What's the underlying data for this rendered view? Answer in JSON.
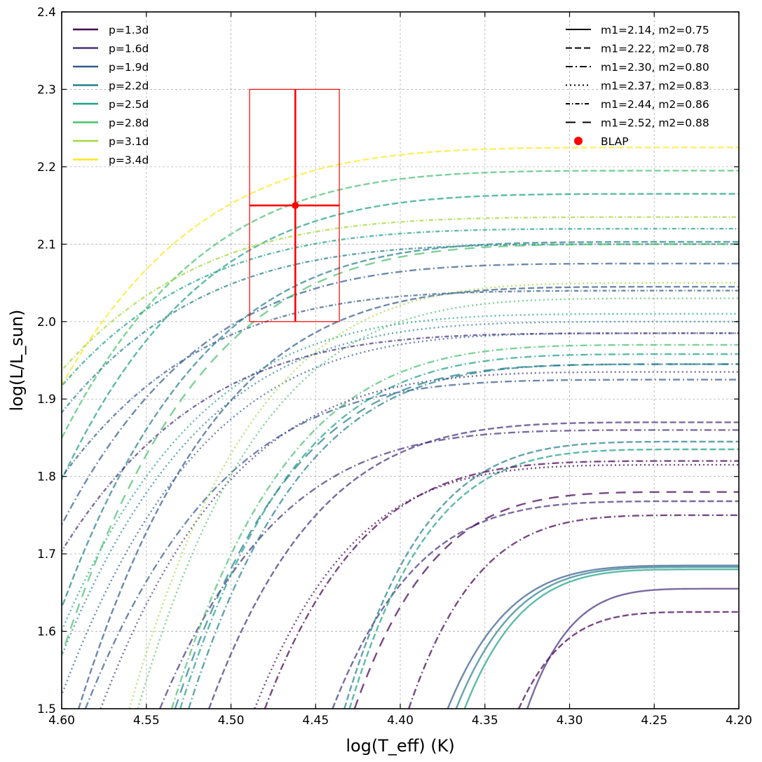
{
  "chart_data": {
    "type": "line",
    "title": "",
    "xlabel": "log(T_eff) (K)",
    "ylabel": "log(L/L_sun)",
    "xlim": [
      4.6,
      4.2
    ],
    "ylim": [
      1.5,
      2.4
    ],
    "x_ticks": [
      "4.60",
      "4.55",
      "4.50",
      "4.45",
      "4.40",
      "4.35",
      "4.30",
      "4.25",
      "4.20"
    ],
    "y_ticks": [
      "1.5",
      "1.6",
      "1.7",
      "1.8",
      "1.9",
      "2.0",
      "2.1",
      "2.2",
      "2.3",
      "2.4"
    ],
    "grid": true,
    "period_legend": {
      "position": "top-left",
      "entries": [
        {
          "label": "p=1.3d",
          "color": "#440154"
        },
        {
          "label": "p=1.6d",
          "color": "#46327e"
        },
        {
          "label": "p=1.9d",
          "color": "#365c8d"
        },
        {
          "label": "p=2.2d",
          "color": "#277f8e"
        },
        {
          "label": "p=2.5d",
          "color": "#1fa187"
        },
        {
          "label": "p=2.8d",
          "color": "#4ac16d"
        },
        {
          "label": "p=3.1d",
          "color": "#a0da39"
        },
        {
          "label": "p=3.4d",
          "color": "#fde725"
        }
      ]
    },
    "mass_legend": {
      "position": "top-right",
      "entries": [
        {
          "label": "m1=2.14, m2=0.75",
          "style": "solid"
        },
        {
          "label": "m1=2.22, m2=0.78",
          "style": "dashed"
        },
        {
          "label": "m1=2.30, m2=0.80",
          "style": "dashdot"
        },
        {
          "label": "m1=2.37, m2=0.83",
          "style": "dotted"
        },
        {
          "label": "m1=2.44, m2=0.86",
          "style": "densedashdot"
        },
        {
          "label": "m1=2.52, m2=0.88",
          "style": "loosedashed"
        },
        {
          "label": "BLAP",
          "style": "marker"
        }
      ]
    },
    "blap": {
      "label": "BLAP",
      "log_teff": 4.462,
      "log_l": 2.15,
      "teff_err_low": 4.436,
      "teff_err_high": 4.489,
      "l_err_low": 2.0,
      "l_err_high": 2.3,
      "color": "#ff0000"
    },
    "series": [
      {
        "name": "m1=2.14 p=1.6d",
        "style": "solid",
        "color": "#46327e",
        "x0": 4.325,
        "c": 4.2,
        "y1": 1.655,
        "k": 5.0
      },
      {
        "name": "m1=2.14 p=1.9d",
        "style": "solid",
        "color": "#365c8d",
        "x0": 4.372,
        "c": 4.2,
        "y1": 1.685,
        "k": 5.0
      },
      {
        "name": "m1=2.14 p=2.2d",
        "style": "solid",
        "color": "#277f8e",
        "x0": 4.367,
        "c": 4.2,
        "y1": 1.683,
        "k": 5.0
      },
      {
        "name": "m1=2.14 p=2.5d",
        "style": "solid",
        "color": "#1fa187",
        "x0": 4.362,
        "c": 4.2,
        "y1": 1.68,
        "k": 5.0
      },
      {
        "name": "m1=2.22 p=1.3d",
        "style": "dashed",
        "color": "#440154",
        "x0": 4.33,
        "c": 4.2,
        "y1": 1.625,
        "k": 5.0
      },
      {
        "name": "m1=2.22 p=1.6d",
        "style": "dashed",
        "color": "#46327e",
        "x0": 4.44,
        "c": 4.2,
        "y1": 1.768,
        "k": 5.0
      },
      {
        "name": "m1=2.22 p=1.6d b",
        "style": "dashed",
        "color": "#46327e",
        "x0": 4.513,
        "c": 4.2,
        "y1": 1.87,
        "k": 5.0
      },
      {
        "name": "m1=2.22 p=1.9d",
        "style": "dashed",
        "color": "#365c8d",
        "x0": 4.59,
        "c": 4.2,
        "y1": 2.045,
        "k": 5.0
      },
      {
        "name": "m1=2.22 p=2.2d",
        "style": "dashed",
        "color": "#277f8e",
        "x0": 4.433,
        "c": 4.2,
        "y1": 1.845,
        "k": 5.0
      },
      {
        "name": "m1=2.22 p=2.2d b",
        "style": "dashed",
        "color": "#277f8e",
        "x0": 4.62,
        "c": 4.2,
        "y1": 2.103,
        "k": 5.0
      },
      {
        "name": "m1=2.22 p=2.5d",
        "style": "dashed",
        "color": "#1fa187",
        "x0": 4.43,
        "c": 4.2,
        "y1": 1.835,
        "k": 5.0
      },
      {
        "name": "m1=2.22 p=2.5d b",
        "style": "dashed",
        "color": "#1fa187",
        "x0": 4.65,
        "c": 4.2,
        "y1": 2.165,
        "k": 5.0
      },
      {
        "name": "m1=2.22 p=2.8d",
        "style": "dashed",
        "color": "#4ac16d",
        "x0": 4.66,
        "c": 4.2,
        "y1": 2.195,
        "k": 5.0
      },
      {
        "name": "m1=2.22 p=3.4d",
        "style": "dashed",
        "color": "#fde725",
        "x0": 4.675,
        "c": 4.2,
        "y1": 2.225,
        "k": 5.0
      },
      {
        "name": "m1=2.30 p=1.3d",
        "style": "dashdot",
        "color": "#440154",
        "x0": 4.395,
        "c": 4.2,
        "y1": 1.75,
        "k": 5.0
      },
      {
        "name": "m1=2.30 p=1.3d b",
        "style": "dashdot",
        "color": "#440154",
        "x0": 4.48,
        "c": 4.2,
        "y1": 1.82,
        "k": 5.0
      },
      {
        "name": "m1=2.30 p=1.6d",
        "style": "dashdot",
        "color": "#46327e",
        "x0": 4.542,
        "c": 4.2,
        "y1": 1.86,
        "k": 5.0
      },
      {
        "name": "m1=2.30 p=1.9d",
        "style": "dashdot",
        "color": "#365c8d",
        "x0": 4.586,
        "c": 4.2,
        "y1": 1.925,
        "k": 5.0
      },
      {
        "name": "m1=2.30 p=1.9d b",
        "style": "dashdot",
        "color": "#365c8d",
        "x0": 4.645,
        "c": 4.2,
        "y1": 2.075,
        "k": 5.0
      },
      {
        "name": "m1=2.30 p=2.2d",
        "style": "dashdot",
        "color": "#277f8e",
        "x0": 4.525,
        "c": 4.2,
        "y1": 1.945,
        "k": 5.0
      },
      {
        "name": "m1=2.30 p=2.5d",
        "style": "dashdot",
        "color": "#1fa187",
        "x0": 4.53,
        "c": 4.2,
        "y1": 1.958,
        "k": 5.0
      },
      {
        "name": "m1=2.30 p=2.8d",
        "style": "dashdot",
        "color": "#4ac16d",
        "x0": 4.535,
        "c": 4.2,
        "y1": 1.97,
        "k": 5.0
      },
      {
        "name": "m1=2.37 p=1.3d",
        "style": "dotted",
        "color": "#440154",
        "x0": 4.486,
        "c": 4.2,
        "y1": 1.815,
        "k": 5.0
      },
      {
        "name": "m1=2.37 p=1.6d",
        "style": "dotted",
        "color": "#46327e",
        "x0": 4.577,
        "c": 4.2,
        "y1": 1.935,
        "k": 5.0
      },
      {
        "name": "m1=2.37 p=1.9d",
        "style": "dotted",
        "color": "#365c8d",
        "x0": 4.603,
        "c": 4.2,
        "y1": 1.985,
        "k": 5.0
      },
      {
        "name": "m1=2.37 p=2.2d",
        "style": "dotted",
        "color": "#277f8e",
        "x0": 4.612,
        "c": 4.2,
        "y1": 2.0,
        "k": 5.0
      },
      {
        "name": "m1=2.37 p=2.5d",
        "style": "dotted",
        "color": "#1fa187",
        "x0": 4.618,
        "c": 4.2,
        "y1": 2.01,
        "k": 5.0
      },
      {
        "name": "m1=2.37 p=2.8d",
        "style": "dotted",
        "color": "#4ac16d",
        "x0": 4.555,
        "c": 4.2,
        "y1": 2.03,
        "k": 5.0
      },
      {
        "name": "m1=2.37 p=3.1d",
        "style": "dotted",
        "color": "#a0da39",
        "x0": 4.56,
        "c": 4.2,
        "y1": 2.05,
        "k": 5.0
      },
      {
        "name": "m1=2.44 p=1.6d",
        "style": "densedashdot",
        "color": "#46327e",
        "x0": 4.646,
        "c": 4.2,
        "y1": 1.985,
        "k": 5.0
      },
      {
        "name": "m1=2.44 p=1.9d",
        "style": "densedashdot",
        "color": "#365c8d",
        "x0": 4.67,
        "c": 4.2,
        "y1": 2.04,
        "k": 5.0
      },
      {
        "name": "m1=2.44 p=2.2d",
        "style": "densedashdot",
        "color": "#277f8e",
        "x0": 4.69,
        "c": 4.2,
        "y1": 2.1,
        "k": 5.0
      },
      {
        "name": "m1=2.44 p=2.5d",
        "style": "densedashdot",
        "color": "#1fa187",
        "x0": 4.7,
        "c": 4.2,
        "y1": 2.12,
        "k": 5.0
      },
      {
        "name": "m1=2.44 p=3.1d",
        "style": "densedashdot",
        "color": "#a0da39",
        "x0": 4.705,
        "c": 4.2,
        "y1": 2.135,
        "k": 5.0
      },
      {
        "name": "m1=2.52 p=1.3d",
        "style": "loosedashed",
        "color": "#440154",
        "x0": 4.427,
        "c": 4.2,
        "y1": 1.78,
        "k": 5.0
      },
      {
        "name": "m1=2.52 p=2.2d",
        "style": "loosedashed",
        "color": "#277f8e",
        "x0": 4.533,
        "c": 4.2,
        "y1": 1.945,
        "k": 5.0
      },
      {
        "name": "m1=2.52 p=2.8d",
        "style": "loosedashed",
        "color": "#4ac16d",
        "x0": 4.61,
        "c": 4.2,
        "y1": 2.1,
        "k": 5.0
      }
    ]
  }
}
